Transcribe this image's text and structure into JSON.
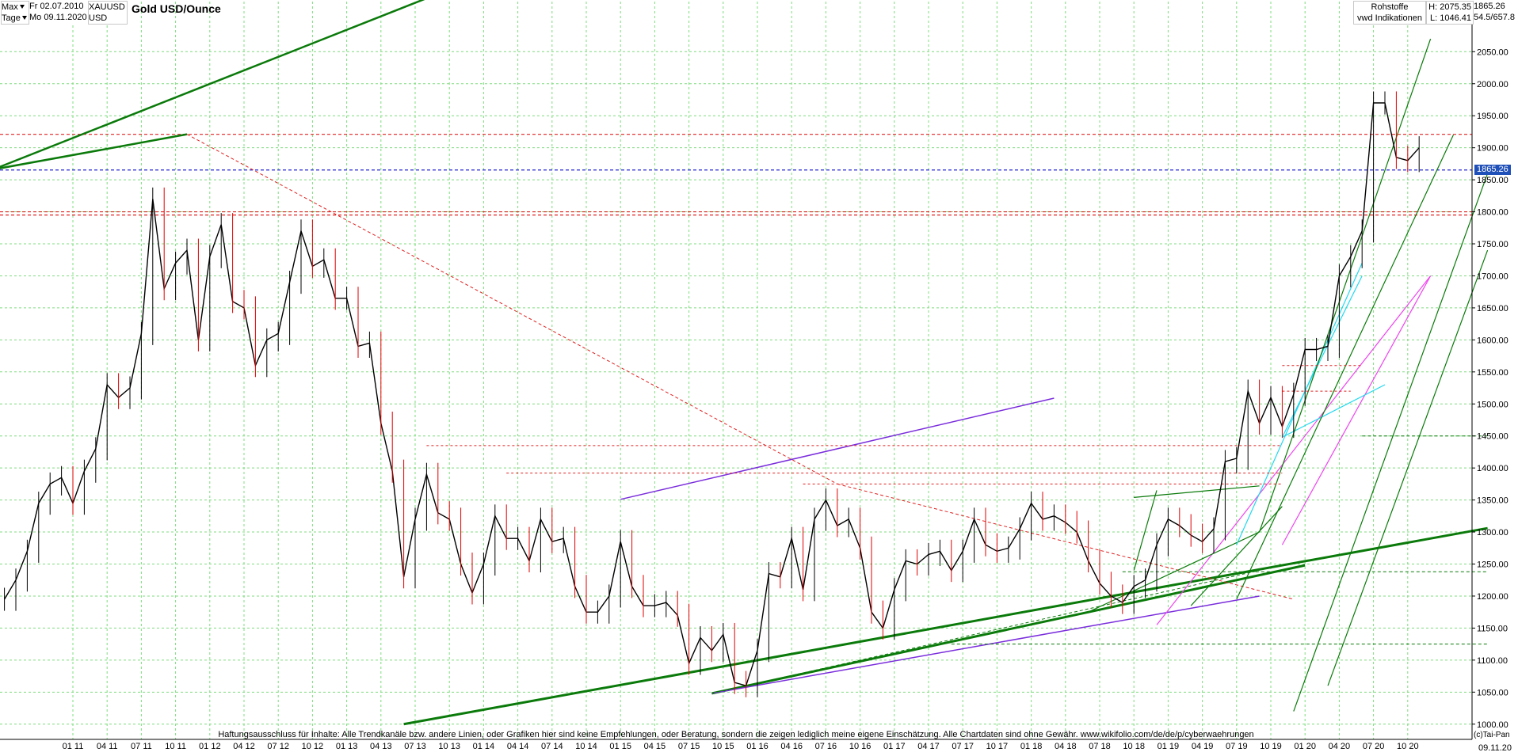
{
  "header": {
    "range_label": "Max",
    "interval_label": "Tage",
    "date_from": "Fr 02.07.2010",
    "date_to": "Mo 09.11.2020",
    "symbol": "XAUUSD",
    "currency": "USD",
    "title": "Gold USD/Ounce",
    "category": "Rohstoffe",
    "source": "vwd Indikationen",
    "high_text": "H: 2075.35",
    "low_text": "L: 1046.41",
    "last_text": "1865.26",
    "ratio_text": "54.5/657.8"
  },
  "footer": {
    "disclaimer": "Haftungsausschluss für Inhalte: Alle Trendkanäle bzw. andere Linien, oder Grafiken hier sind keine Empfehlungen, oder Beratung, sondern die zeigen lediglich meine eigene Einschätzung. Alle Chartdaten sind ohne Gewähr.  www.wikifolio.com/de/de/p/cyberwaehrungen",
    "copyright": "(c)Tai-Pan",
    "axis_date": "09.11.20"
  },
  "colors": {
    "background": "#ffffff",
    "grid": "#7fdc7f",
    "candle_up": "#000000",
    "candle_down": "#e00000",
    "trend_green": "#0a7a0a",
    "trend_purple": "#7a2cdc",
    "trend_magenta": "#ee44ee",
    "trend_cyan": "#22d8f0",
    "level_red": "#e02020",
    "level_blue": "#2020d0",
    "price_box": "#1f4fb8"
  },
  "chart_data": {
    "type": "line",
    "title": "Gold USD/Ounce",
    "xlabel": "",
    "ylabel": "",
    "ylim": [
      996,
      2106
    ],
    "grid": true,
    "log_scale": false,
    "last_value_label": "1865.26",
    "y_ticks": [
      "1000.00",
      "1050.00",
      "1100.00",
      "1150.00",
      "1200.00",
      "1250.00",
      "1300.00",
      "1350.00",
      "1400.00",
      "1450.00",
      "1500.00",
      "1550.00",
      "1600.00",
      "1650.00",
      "1700.00",
      "1750.00",
      "1800.00",
      "1850.00",
      "1900.00",
      "1950.00",
      "2000.00",
      "2050.00"
    ],
    "x_ticks": [
      "01 11",
      "04 11",
      "07 11",
      "10 11",
      "01 12",
      "04 12",
      "07 12",
      "10 12",
      "01 13",
      "04 13",
      "07 13",
      "10 13",
      "01 14",
      "04 14",
      "07 14",
      "10 14",
      "01 15",
      "04 15",
      "07 15",
      "10 15",
      "01 16",
      "04 16",
      "07 16",
      "10 16",
      "01 17",
      "04 17",
      "07 17",
      "10 17",
      "01 18",
      "04 18",
      "07 18",
      "10 18",
      "01 19",
      "04 19",
      "07 19",
      "10 19",
      "01 20",
      "04 20",
      "07 20",
      "10 20"
    ],
    "series": [
      {
        "x": [
          "2010-07",
          "2010-08",
          "2010-09",
          "2010-10",
          "2010-11",
          "2010-12",
          "2011-01",
          "2011-02",
          "2011-03",
          "2011-04",
          "2011-05",
          "2011-06",
          "2011-07",
          "2011-08",
          "2011-09",
          "2011-10",
          "2011-11",
          "2011-12",
          "2012-01",
          "2012-02",
          "2012-03",
          "2012-04",
          "2012-05",
          "2012-06",
          "2012-07",
          "2012-08",
          "2012-09",
          "2012-10",
          "2012-11",
          "2012-12",
          "2013-01",
          "2013-02",
          "2013-03",
          "2013-04",
          "2013-05",
          "2013-06",
          "2013-07",
          "2013-08",
          "2013-09",
          "2013-10",
          "2013-11",
          "2013-12",
          "2014-01",
          "2014-02",
          "2014-03",
          "2014-04",
          "2014-05",
          "2014-06",
          "2014-07",
          "2014-08",
          "2014-09",
          "2014-10",
          "2014-11",
          "2014-12",
          "2015-01",
          "2015-02",
          "2015-03",
          "2015-04",
          "2015-05",
          "2015-06",
          "2015-07",
          "2015-08",
          "2015-09",
          "2015-10",
          "2015-11",
          "2015-12",
          "2016-01",
          "2016-02",
          "2016-03",
          "2016-04",
          "2016-05",
          "2016-06",
          "2016-07",
          "2016-08",
          "2016-09",
          "2016-10",
          "2016-11",
          "2016-12",
          "2017-01",
          "2017-02",
          "2017-03",
          "2017-04",
          "2017-05",
          "2017-06",
          "2017-07",
          "2017-08",
          "2017-09",
          "2017-10",
          "2017-11",
          "2017-12",
          "2018-01",
          "2018-02",
          "2018-03",
          "2018-04",
          "2018-05",
          "2018-06",
          "2018-07",
          "2018-08",
          "2018-09",
          "2018-10",
          "2018-11",
          "2018-12",
          "2019-01",
          "2019-02",
          "2019-03",
          "2019-04",
          "2019-05",
          "2019-06",
          "2019-07",
          "2019-08",
          "2019-09",
          "2019-10",
          "2019-11",
          "2019-12",
          "2020-01",
          "2020-02",
          "2020-03",
          "2020-04",
          "2020-05",
          "2020-06",
          "2020-07",
          "2020-08",
          "2020-09",
          "2020-10",
          "2020-11"
        ],
        "values": [
          1195,
          1225,
          1270,
          1345,
          1375,
          1385,
          1345,
          1395,
          1430,
          1530,
          1510,
          1525,
          1610,
          1820,
          1680,
          1720,
          1740,
          1600,
          1730,
          1780,
          1660,
          1650,
          1560,
          1600,
          1610,
          1690,
          1770,
          1715,
          1725,
          1665,
          1665,
          1590,
          1595,
          1470,
          1395,
          1230,
          1320,
          1390,
          1330,
          1320,
          1250,
          1205,
          1250,
          1325,
          1290,
          1290,
          1255,
          1320,
          1285,
          1290,
          1215,
          1175,
          1175,
          1200,
          1285,
          1215,
          1185,
          1185,
          1190,
          1170,
          1095,
          1135,
          1115,
          1140,
          1065,
          1060,
          1115,
          1235,
          1230,
          1290,
          1210,
          1320,
          1350,
          1310,
          1320,
          1275,
          1175,
          1150,
          1210,
          1255,
          1250,
          1265,
          1270,
          1240,
          1270,
          1320,
          1280,
          1270,
          1275,
          1305,
          1345,
          1320,
          1325,
          1315,
          1300,
          1255,
          1220,
          1200,
          1190,
          1215,
          1225,
          1280,
          1320,
          1310,
          1295,
          1285,
          1305,
          1410,
          1415,
          1520,
          1470,
          1510,
          1465,
          1515,
          1585,
          1585,
          1590,
          1700,
          1730,
          1770,
          1970,
          1970,
          1885,
          1880,
          1900
        ]
      }
    ],
    "horizontal_levels": [
      1921,
      1865.26,
      1800,
      1795
    ]
  }
}
